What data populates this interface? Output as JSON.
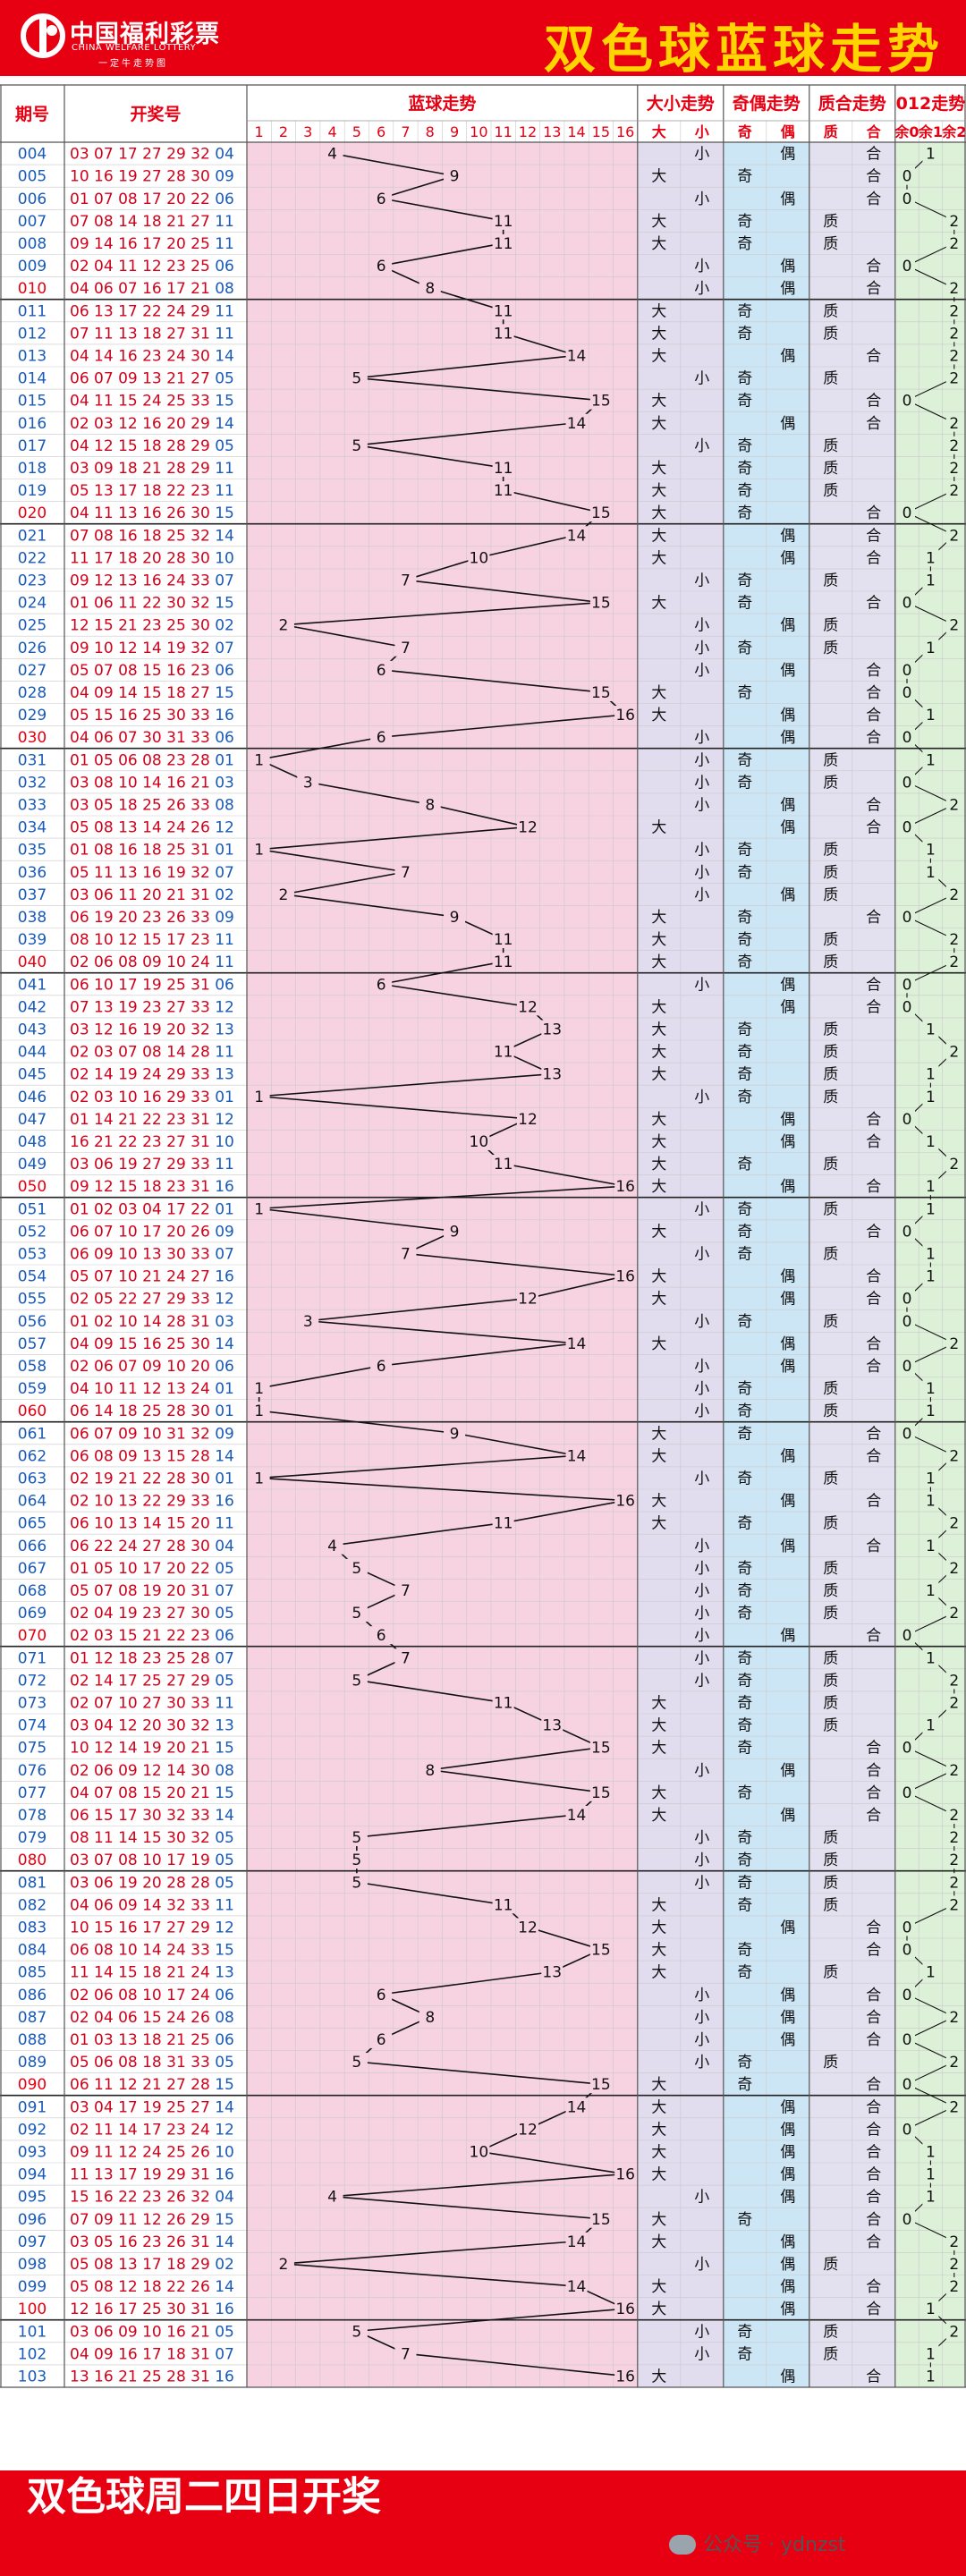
{
  "header": {
    "logo_cn": "中国福利彩票",
    "logo_en": "CHINA WELFARE LOTTERY",
    "logo_tag": "一定牛走势图",
    "title": "双色球蓝球走势"
  },
  "footer": {
    "text": "双色球周二四日开奖",
    "wechat": "公众号 · ydnzst"
  },
  "colors": {
    "header_red": "#e60012",
    "title_yellow": "#ffd400",
    "period_blue": "#1a5bb8",
    "period_red_every_10": "#e60012",
    "blue_ball_column": "#1a5bb8",
    "blue_trend_bg": "#f7d3e1",
    "size_bg": "#e2dcef",
    "parity_bg": "#cde6f6",
    "prime_bg": "#e3e0ef",
    "mod3_bg": "#ddf0d8"
  },
  "chart_data": {
    "type": "table",
    "title": "双色球蓝球走势",
    "columns": {
      "period": "期号",
      "draw": "开奖号",
      "blue_trend": "蓝球走势",
      "size": "大小走势",
      "parity": "奇偶走势",
      "prime": "质合走势",
      "mod3": "012走势"
    },
    "blue_axis": [
      "1",
      "2",
      "3",
      "4",
      "5",
      "6",
      "7",
      "8",
      "9",
      "10",
      "11",
      "12",
      "13",
      "14",
      "15",
      "16"
    ],
    "size_labels": [
      "大",
      "小"
    ],
    "parity_labels": [
      "奇",
      "偶"
    ],
    "prime_labels": [
      "质",
      "合"
    ],
    "mod3_labels": [
      "余0",
      "余1",
      "余2"
    ],
    "rows": [
      {
        "period": "004",
        "reds": "03 07 17 27 29 32",
        "blue": 4
      },
      {
        "period": "005",
        "reds": "10 16 19 27 28 30",
        "blue": 9
      },
      {
        "period": "006",
        "reds": "01 07 08 17 20 22",
        "blue": 6
      },
      {
        "period": "007",
        "reds": "07 08 14 18 21 27",
        "blue": 11
      },
      {
        "period": "008",
        "reds": "09 14 16 17 20 25",
        "blue": 11
      },
      {
        "period": "009",
        "reds": "02 04 11 12 23 25",
        "blue": 6
      },
      {
        "period": "010",
        "reds": "04 06 07 16 17 21",
        "blue": 8
      },
      {
        "period": "011",
        "reds": "06 13 17 22 24 29",
        "blue": 11
      },
      {
        "period": "012",
        "reds": "07 11 13 18 27 31",
        "blue": 11
      },
      {
        "period": "013",
        "reds": "04 14 16 23 24 30",
        "blue": 14
      },
      {
        "period": "014",
        "reds": "06 07 09 13 21 27",
        "blue": 5
      },
      {
        "period": "015",
        "reds": "04 11 15 24 25 33",
        "blue": 15
      },
      {
        "period": "016",
        "reds": "02 03 12 16 20 29",
        "blue": 14
      },
      {
        "period": "017",
        "reds": "04 12 15 18 28 29",
        "blue": 5
      },
      {
        "period": "018",
        "reds": "03 09 18 21 28 29",
        "blue": 11
      },
      {
        "period": "019",
        "reds": "05 13 17 18 22 23",
        "blue": 11
      },
      {
        "period": "020",
        "reds": "04 11 13 16 26 30",
        "blue": 15
      },
      {
        "period": "021",
        "reds": "07 08 16 18 25 32",
        "blue": 14
      },
      {
        "period": "022",
        "reds": "11 17 18 20 28 30",
        "blue": 10
      },
      {
        "period": "023",
        "reds": "09 12 13 16 24 33",
        "blue": 7
      },
      {
        "period": "024",
        "reds": "01 06 11 22 30 32",
        "blue": 15
      },
      {
        "period": "025",
        "reds": "12 15 21 23 25 30",
        "blue": 2
      },
      {
        "period": "026",
        "reds": "09 10 12 14 19 32",
        "blue": 7
      },
      {
        "period": "027",
        "reds": "05 07 08 15 16 23",
        "blue": 6
      },
      {
        "period": "028",
        "reds": "04 09 14 15 18 27",
        "blue": 15
      },
      {
        "period": "029",
        "reds": "05 15 16 25 30 33",
        "blue": 16
      },
      {
        "period": "030",
        "reds": "04 06 07 30 31 33",
        "blue": 6
      },
      {
        "period": "031",
        "reds": "01 05 06 08 23 28",
        "blue": 1
      },
      {
        "period": "032",
        "reds": "03 08 10 14 16 21",
        "blue": 3
      },
      {
        "period": "033",
        "reds": "03 05 18 25 26 33",
        "blue": 8
      },
      {
        "period": "034",
        "reds": "05 08 13 14 24 26",
        "blue": 12
      },
      {
        "period": "035",
        "reds": "01 08 16 18 25 31",
        "blue": 1
      },
      {
        "period": "036",
        "reds": "05 11 13 16 19 32",
        "blue": 7
      },
      {
        "period": "037",
        "reds": "03 06 11 20 21 31",
        "blue": 2
      },
      {
        "period": "038",
        "reds": "06 19 20 23 26 33",
        "blue": 9
      },
      {
        "period": "039",
        "reds": "08 10 12 15 17 23",
        "blue": 11
      },
      {
        "period": "040",
        "reds": "02 06 08 09 10 24",
        "blue": 11
      },
      {
        "period": "041",
        "reds": "06 10 17 19 25 31",
        "blue": 6
      },
      {
        "period": "042",
        "reds": "07 13 19 23 27 33",
        "blue": 12
      },
      {
        "period": "043",
        "reds": "03 12 16 19 20 32",
        "blue": 13
      },
      {
        "period": "044",
        "reds": "02 03 07 08 14 28",
        "blue": 11
      },
      {
        "period": "045",
        "reds": "02 14 19 24 29 33",
        "blue": 13
      },
      {
        "period": "046",
        "reds": "02 03 10 16 29 33",
        "blue": 1
      },
      {
        "period": "047",
        "reds": "01 14 21 22 23 31",
        "blue": 12
      },
      {
        "period": "048",
        "reds": "16 21 22 23 27 31",
        "blue": 10
      },
      {
        "period": "049",
        "reds": "03 06 19 27 29 33",
        "blue": 11
      },
      {
        "period": "050",
        "reds": "09 12 15 18 23 31",
        "blue": 16
      },
      {
        "period": "051",
        "reds": "01 02 03 04 17 22",
        "blue": 1
      },
      {
        "period": "052",
        "reds": "06 07 10 17 20 26",
        "blue": 9
      },
      {
        "period": "053",
        "reds": "06 09 10 13 30 33",
        "blue": 7
      },
      {
        "period": "054",
        "reds": "05 07 10 21 24 27",
        "blue": 16
      },
      {
        "period": "055",
        "reds": "02 05 22 27 29 33",
        "blue": 12
      },
      {
        "period": "056",
        "reds": "01 02 10 14 28 31",
        "blue": 3
      },
      {
        "period": "057",
        "reds": "04 09 15 16 25 30",
        "blue": 14
      },
      {
        "period": "058",
        "reds": "02 06 07 09 10 20",
        "blue": 6
      },
      {
        "period": "059",
        "reds": "04 10 11 12 13 24",
        "blue": 1
      },
      {
        "period": "060",
        "reds": "06 14 18 25 28 30",
        "blue": 1
      },
      {
        "period": "061",
        "reds": "06 07 09 10 31 32",
        "blue": 9
      },
      {
        "period": "062",
        "reds": "06 08 09 13 15 28",
        "blue": 14
      },
      {
        "period": "063",
        "reds": "02 19 21 22 28 30",
        "blue": 1
      },
      {
        "period": "064",
        "reds": "02 10 13 22 29 33",
        "blue": 16
      },
      {
        "period": "065",
        "reds": "06 10 13 14 15 20",
        "blue": 11
      },
      {
        "period": "066",
        "reds": "06 22 24 27 28 30",
        "blue": 4
      },
      {
        "period": "067",
        "reds": "01 05 10 17 20 22",
        "blue": 5
      },
      {
        "period": "068",
        "reds": "05 07 08 19 20 31",
        "blue": 7
      },
      {
        "period": "069",
        "reds": "02 04 19 23 27 30",
        "blue": 5
      },
      {
        "period": "070",
        "reds": "02 03 15 21 22 23",
        "blue": 6
      },
      {
        "period": "071",
        "reds": "01 12 18 23 25 28",
        "blue": 7
      },
      {
        "period": "072",
        "reds": "02 14 17 25 27 29",
        "blue": 5
      },
      {
        "period": "073",
        "reds": "02 07 10 27 30 33",
        "blue": 11
      },
      {
        "period": "074",
        "reds": "03 04 12 20 30 32",
        "blue": 13
      },
      {
        "period": "075",
        "reds": "10 12 14 19 20 21",
        "blue": 15
      },
      {
        "period": "076",
        "reds": "02 06 09 12 14 30",
        "blue": 8
      },
      {
        "period": "077",
        "reds": "04 07 08 15 20 21",
        "blue": 15
      },
      {
        "period": "078",
        "reds": "06 15 17 30 32 33",
        "blue": 14
      },
      {
        "period": "079",
        "reds": "08 11 14 15 30 32",
        "blue": 5
      },
      {
        "period": "080",
        "reds": "03 07 08 10 17 19",
        "blue": 5
      },
      {
        "period": "081",
        "reds": "03 06 19 20 28 28",
        "blue": 5
      },
      {
        "period": "082",
        "reds": "04 06 09 14 32 33",
        "blue": 11
      },
      {
        "period": "083",
        "reds": "10 15 16 17 27 29",
        "blue": 12
      },
      {
        "period": "084",
        "reds": "06 08 10 14 24 33",
        "blue": 15
      },
      {
        "period": "085",
        "reds": "11 14 15 18 21 24",
        "blue": 13
      },
      {
        "period": "086",
        "reds": "02 06 08 10 17 24",
        "blue": 6
      },
      {
        "period": "087",
        "reds": "02 04 06 15 24 26",
        "blue": 8
      },
      {
        "period": "088",
        "reds": "01 03 13 18 21 25",
        "blue": 6
      },
      {
        "period": "089",
        "reds": "05 06 08 18 31 33",
        "blue": 5
      },
      {
        "period": "090",
        "reds": "06 11 12 21 27 28",
        "blue": 15
      },
      {
        "period": "091",
        "reds": "03 04 17 19 25 27",
        "blue": 14
      },
      {
        "period": "092",
        "reds": "02 11 14 17 23 24",
        "blue": 12
      },
      {
        "period": "093",
        "reds": "09 11 12 24 25 26",
        "blue": 10
      },
      {
        "period": "094",
        "reds": "11 13 17 19 29 31",
        "blue": 16
      },
      {
        "period": "095",
        "reds": "15 16 22 23 26 32",
        "blue": 4
      },
      {
        "period": "096",
        "reds": "07 09 11 12 26 29",
        "blue": 15
      },
      {
        "period": "097",
        "reds": "03 05 16 23 26 31",
        "blue": 14
      },
      {
        "period": "098",
        "reds": "05 08 13 17 18 29",
        "blue": 2
      },
      {
        "period": "099",
        "reds": "05 08 12 18 22 26",
        "blue": 14
      },
      {
        "period": "100",
        "reds": "12 16 17 25 30 31",
        "blue": 16
      },
      {
        "period": "101",
        "reds": "03 06 09 10 16 21",
        "blue": 5
      },
      {
        "period": "102",
        "reds": "04 09 16 17 18 31",
        "blue": 7
      },
      {
        "period": "103",
        "reds": "13 16 21 25 28 31",
        "blue": 16
      }
    ]
  }
}
